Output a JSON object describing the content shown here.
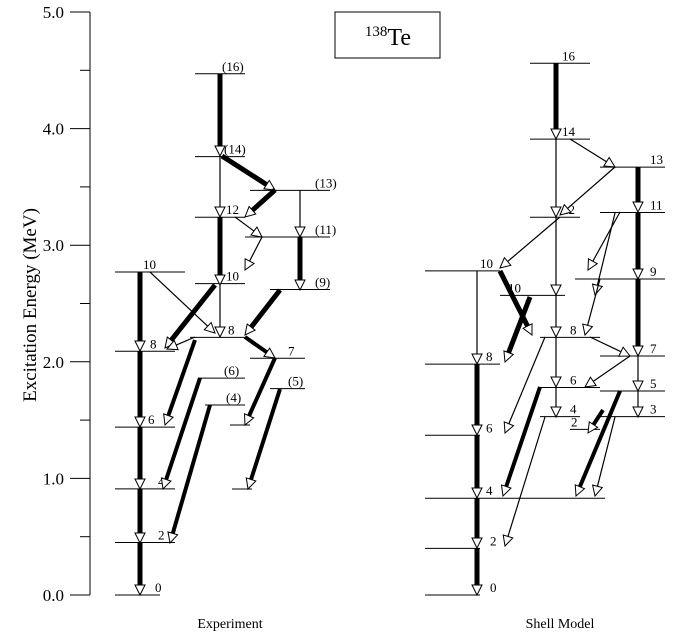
{
  "axis": {
    "label": "Excitation   Energy   (MeV)",
    "ylim": [
      0,
      5
    ],
    "ticks": [
      {
        "value": 0,
        "label": "0.0"
      },
      {
        "value": 1,
        "label": "1.0"
      },
      {
        "value": 2,
        "label": "2.0"
      },
      {
        "value": 3,
        "label": "3.0"
      },
      {
        "value": 4,
        "label": "4.0"
      },
      {
        "value": 5,
        "label": "5.0"
      }
    ],
    "minor_ticks": [
      0.5,
      1.5,
      2.5,
      3.5,
      4.5
    ]
  },
  "nucleus": {
    "mass": "138",
    "symbol": "Te"
  },
  "panels": [
    {
      "title": "Experiment",
      "levels": [
        {
          "label": "0",
          "energy": 0
        },
        {
          "label": "2",
          "energy": 0.45
        },
        {
          "label": "4",
          "energy": 0.91
        },
        {
          "label": "6",
          "energy": 1.44
        },
        {
          "label": "8",
          "energy": 2.09
        },
        {
          "label": "10",
          "energy": 2.77
        },
        {
          "label": "(4)",
          "energy": 1.63
        },
        {
          "label": "(6)",
          "energy": 1.86
        },
        {
          "label": "8",
          "energy": 2.21
        },
        {
          "label": "10",
          "energy": 2.67
        },
        {
          "label": "12",
          "energy": 3.24
        },
        {
          "label": "(14)",
          "energy": 3.76
        },
        {
          "label": "(16)",
          "energy": 4.47
        },
        {
          "label": "7",
          "energy": 2.03
        },
        {
          "label": "(5)",
          "energy": 1.77
        },
        {
          "label": "(9)",
          "energy": 2.62
        },
        {
          "label": "(11)",
          "energy": 3.07
        },
        {
          "label": "(13)",
          "energy": 3.47
        }
      ]
    },
    {
      "title": "Shell  Model",
      "levels": [
        {
          "label": "0",
          "energy": 0
        },
        {
          "label": "2",
          "energy": 0.4
        },
        {
          "label": "4",
          "energy": 0.83
        },
        {
          "label": "6",
          "energy": 1.37
        },
        {
          "label": "8",
          "energy": 1.98
        },
        {
          "label": "10",
          "energy": 2.78
        },
        {
          "label": "10",
          "energy": 2.57
        },
        {
          "label": "8",
          "energy": 2.21
        },
        {
          "label": "6",
          "energy": 1.78
        },
        {
          "label": "4",
          "energy": 1.53
        },
        {
          "label": "2",
          "energy": 1.42
        },
        {
          "label": "12",
          "energy": 3.24
        },
        {
          "label": "14",
          "energy": 3.91
        },
        {
          "label": "16",
          "energy": 4.56
        },
        {
          "label": "13",
          "energy": 3.67
        },
        {
          "label": "11",
          "energy": 3.28
        },
        {
          "label": "9",
          "energy": 2.71
        },
        {
          "label": "7",
          "energy": 2.05
        },
        {
          "label": "5",
          "energy": 1.75
        },
        {
          "label": "3",
          "energy": 1.53
        }
      ]
    }
  ]
}
